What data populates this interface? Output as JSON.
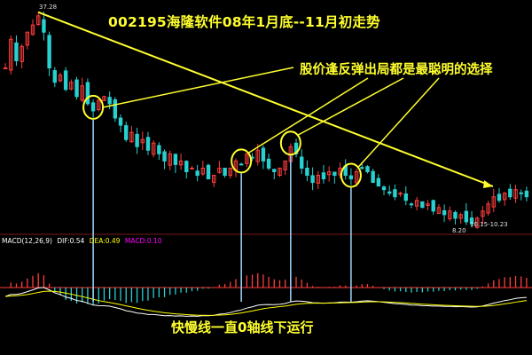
{
  "title": "002195海隆软件08年1月底--11月初走势",
  "annotation_main": "股价逢反弹出局都是最聪明的选择",
  "annotation_bottom": "快慢线一直0轴线下运行",
  "price_high_label": "37.28",
  "price_low_label": "8.20",
  "range_label": "10.15-10.23",
  "macd_indicator": {
    "name": "MACD(12,26,9)",
    "dif": "DIF:0.54",
    "dea": "DEA:0.49",
    "macd": "MACD:0.10"
  },
  "colors": {
    "background": "#000000",
    "up_candle": "#ff3c3c",
    "down_candle": "#28d0d0",
    "annotation": "#ffff2e",
    "dif_line": "#ffffff",
    "dea_line": "#ffff00",
    "zero_axis": "#ff3c3c"
  },
  "chart_data": [
    {
      "type": "candlestick",
      "title": "002195海隆软件08年1月底--11月初走势",
      "period": "08年1月底--11月初",
      "price_high": 37.28,
      "price_low": 8.2,
      "close_profile": [
        30,
        34,
        31,
        33,
        35,
        36,
        37.28,
        35,
        30,
        28,
        29,
        27,
        28,
        26,
        27.5,
        25,
        24,
        25.5,
        26,
        25,
        23,
        22,
        20,
        21,
        19,
        20,
        18.5,
        19.5,
        18,
        17,
        18,
        16.5,
        17,
        15.5,
        16,
        15,
        16,
        14.5,
        15,
        16,
        15,
        16,
        17,
        16.5,
        18,
        17.5,
        18.5,
        17,
        16,
        15.5,
        16,
        17,
        19,
        18,
        16,
        15,
        14,
        15,
        14.5,
        15.5,
        15,
        16,
        15,
        14.5,
        15.5,
        16,
        15.5,
        14,
        13.5,
        13,
        12.5,
        12,
        12.5,
        11.5,
        11,
        11.5,
        10.5,
        11,
        10,
        10.5,
        9.5,
        10,
        9,
        9.5,
        8.5,
        8.2,
        9,
        10,
        11,
        12,
        11.5,
        12.5,
        12,
        13,
        12.5,
        12
      ],
      "rebound_points": [
        16,
        43,
        52,
        63
      ],
      "annotations": [
        "股价逢反弹出局都是最聪明的选择"
      ]
    },
    {
      "type": "bar",
      "name": "MACD",
      "params": "MACD(12,26,9)",
      "dif": 0.54,
      "dea": 0.49,
      "macd": 0.1,
      "zero_axis": 0,
      "annotations": [
        "快慢线一直0轴线下运行"
      ]
    }
  ]
}
